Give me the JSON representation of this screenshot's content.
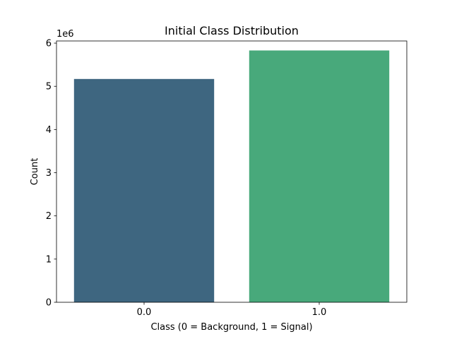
{
  "chart_data": {
    "type": "bar",
    "title": "Initial Class Distribution",
    "xlabel": "Class (0 = Background, 1 = Signal)",
    "ylabel": "Count",
    "y_offset_label": "1e6",
    "categories": [
      "0.0",
      "1.0"
    ],
    "values": [
      5170000,
      5830000
    ],
    "colors": [
      "#3e6680",
      "#48a97b"
    ],
    "ylim": [
      0,
      6050000
    ],
    "yticks": [
      0,
      1000000,
      2000000,
      3000000,
      4000000,
      5000000,
      6000000
    ],
    "ytick_labels": [
      "0",
      "1",
      "2",
      "3",
      "4",
      "5",
      "6"
    ],
    "grid": false,
    "legend": false
  }
}
